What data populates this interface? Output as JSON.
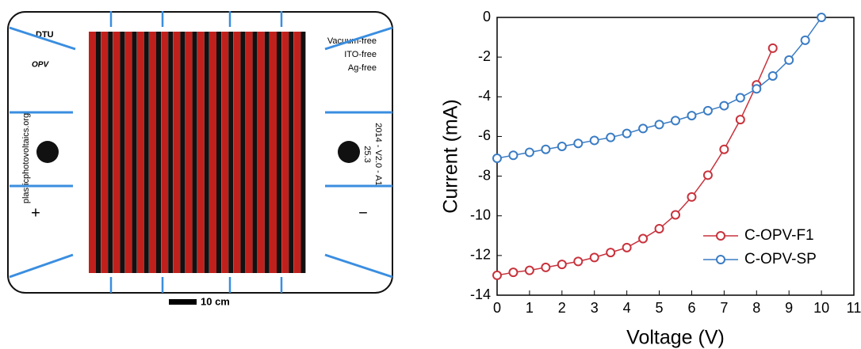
{
  "device": {
    "logo": "DTU",
    "logo_sub": "OPV",
    "features": [
      "Vacuum-free",
      "ITO-free",
      "Ag-free"
    ],
    "website": "plasticphotovoltaics.org",
    "version": "2014 - V2.0 - A1",
    "number": "25.3",
    "plus": "+",
    "minus": "−",
    "scale_bar": "10 cm"
  },
  "chart_data": {
    "type": "line",
    "x_label": "Voltage (V)",
    "y_label": "Current (mA)",
    "x": [
      0,
      0.5,
      1,
      1.5,
      2,
      2.5,
      3,
      3.5,
      4,
      4.5,
      5,
      5.5,
      6,
      6.5,
      7,
      7.5,
      8,
      8.5,
      9,
      9.5,
      10
    ],
    "series": [
      {
        "name": "C-OPV-F1",
        "color": "#c8323c",
        "values": [
          -13.0,
          -12.85,
          -12.75,
          -12.6,
          -12.45,
          -12.3,
          -12.1,
          -11.85,
          -11.6,
          -11.15,
          -10.65,
          -9.95,
          -9.05,
          -7.95,
          -6.65,
          -5.15,
          -3.4,
          -1.55,
          null,
          null,
          null
        ]
      },
      {
        "name": "C-OPV-SP",
        "color": "#3a7cc4",
        "values": [
          -7.1,
          -6.95,
          -6.8,
          -6.65,
          -6.5,
          -6.35,
          -6.2,
          -6.05,
          -5.85,
          -5.6,
          -5.4,
          -5.2,
          -4.95,
          -4.7,
          -4.45,
          -4.05,
          -3.6,
          -2.95,
          -2.15,
          -1.15,
          0
        ]
      }
    ],
    "xlim": [
      0,
      11
    ],
    "xticks": [
      0,
      1,
      2,
      3,
      4,
      5,
      6,
      7,
      8,
      9,
      10,
      11
    ],
    "ylim": [
      -14,
      0
    ],
    "yticks": [
      -14,
      -12,
      -10,
      -8,
      -6,
      -4,
      -2,
      0
    ],
    "legend": "lower right"
  }
}
